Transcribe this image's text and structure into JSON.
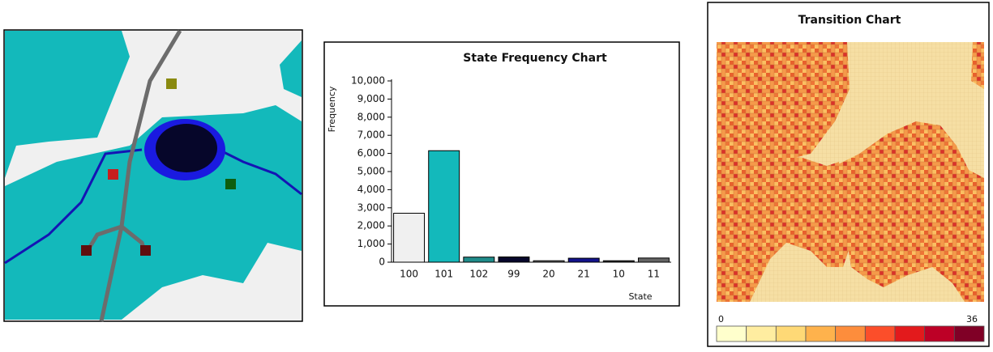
{
  "chart_data": [
    {
      "type": "bar",
      "title": "State Frequency Chart",
      "x_label": "State",
      "y_label": "Frequency",
      "categories": [
        "100",
        "101",
        "102",
        "99",
        "20",
        "21",
        "10",
        "11"
      ],
      "values": [
        2700,
        6150,
        280,
        290,
        80,
        220,
        80,
        230
      ],
      "colors": [
        "#f0f0f0",
        "#13b9bb",
        "#1f8c8a",
        "#07072b",
        "#6c6c6c",
        "#12128c",
        "#303030",
        "#646464"
      ],
      "ylim": [
        0,
        10000
      ],
      "yticks": [
        0,
        {
          "value": 1000,
          "label": "1,000"
        },
        {
          "value": 2000,
          "label": "2,000"
        },
        {
          "value": 3000,
          "label": "3,000"
        },
        {
          "value": 4000,
          "label": "4,000"
        },
        {
          "value": 5000,
          "label": "5,000"
        },
        {
          "value": 6000,
          "label": "6,000"
        },
        {
          "value": 7000,
          "label": "7,000"
        },
        {
          "value": 8000,
          "label": "8,000"
        },
        {
          "value": 9000,
          "label": "9,000"
        },
        {
          "value": 10000,
          "label": "10,000"
        }
      ]
    },
    {
      "type": "heatmap",
      "title": "Transition Chart",
      "zlim": [
        0,
        36
      ],
      "zticks": [
        0,
        36
      ],
      "colormap": [
        "#ffffcc",
        "#ffeda0",
        "#fed976",
        "#feb24c",
        "#fd8d3c",
        "#fc4e2a",
        "#e31a1c",
        "#bd0026",
        "#800026"
      ]
    }
  ]
}
